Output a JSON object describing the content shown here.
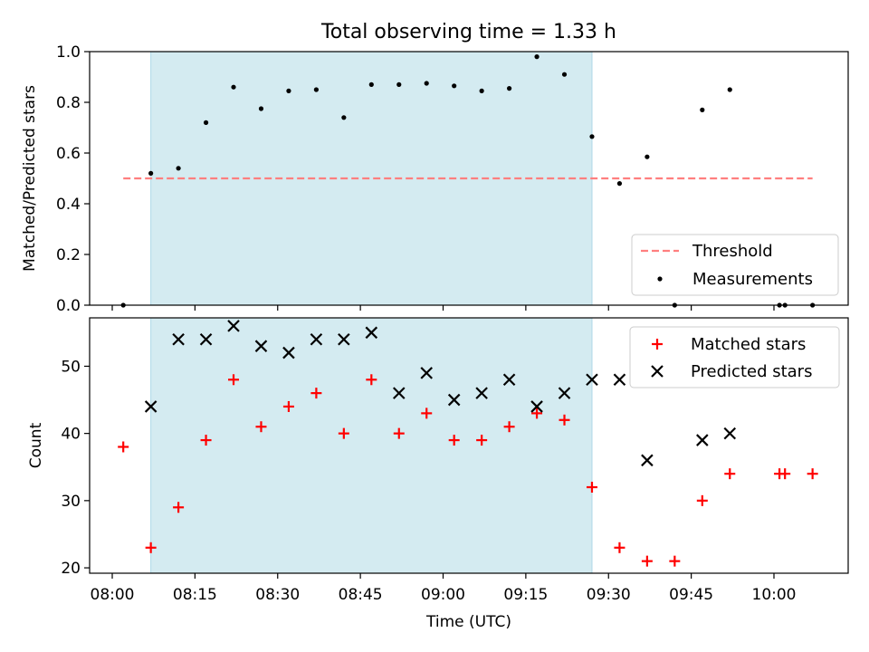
{
  "figure": {
    "title": "Total observing time = 1.33 h",
    "xlabel": "Time (UTC)"
  },
  "chart_data": [
    {
      "type": "scatter",
      "ylabel": "Matched/Predicted stars",
      "ylim": [
        0.0,
        1.0
      ],
      "yticks": [
        "0.0",
        "0.2",
        "0.4",
        "0.6",
        "0.8",
        "1.0"
      ],
      "xrange": [
        "08:00",
        "10:10"
      ],
      "shaded_span": [
        "08:07",
        "09:27"
      ],
      "shade_color": "#d4ebf1",
      "legend": "bottom-right",
      "series": [
        {
          "name": "Threshold",
          "kind": "dashed-line",
          "color": "#ff7f7f",
          "x": [
            "08:02",
            "10:07"
          ],
          "values": [
            0.5,
            0.5
          ]
        },
        {
          "name": "Measurements",
          "kind": "dots",
          "color": "#000000",
          "x": [
            "08:02",
            "08:07",
            "08:12",
            "08:17",
            "08:22",
            "08:27",
            "08:32",
            "08:37",
            "08:42",
            "08:47",
            "08:52",
            "08:57",
            "09:02",
            "09:07",
            "09:12",
            "09:17",
            "09:22",
            "09:27",
            "09:32",
            "09:37",
            "09:42",
            "09:47",
            "09:52",
            "10:01",
            "10:02",
            "10:07"
          ],
          "values": [
            0.0,
            0.52,
            0.54,
            0.72,
            0.86,
            0.775,
            0.845,
            0.85,
            0.74,
            0.87,
            0.87,
            0.875,
            0.865,
            0.845,
            0.855,
            0.98,
            0.91,
            0.665,
            0.48,
            0.585,
            0.0,
            0.77,
            0.85,
            0.0,
            0.0,
            0.0
          ]
        }
      ]
    },
    {
      "type": "scatter",
      "ylabel": "Count",
      "ylim": [
        19.2,
        57.2
      ],
      "yticks": [
        "20",
        "30",
        "40",
        "50"
      ],
      "xticks": [
        "08:00",
        "08:15",
        "08:30",
        "08:45",
        "09:00",
        "09:15",
        "09:30",
        "09:45",
        "10:00"
      ],
      "xrange": [
        "08:00",
        "10:10"
      ],
      "shaded_span": [
        "08:07",
        "09:27"
      ],
      "shade_color": "#d4ebf1",
      "legend": "top-right",
      "series": [
        {
          "name": "Matched stars",
          "marker": "plus",
          "color": "#ff0000",
          "x": [
            "08:02",
            "08:07",
            "08:12",
            "08:17",
            "08:22",
            "08:27",
            "08:32",
            "08:37",
            "08:42",
            "08:47",
            "08:52",
            "08:57",
            "09:02",
            "09:07",
            "09:12",
            "09:17",
            "09:22",
            "09:27",
            "09:32",
            "09:37",
            "09:42",
            "09:47",
            "09:52",
            "10:01",
            "10:02",
            "10:07"
          ],
          "values": [
            38,
            23,
            29,
            39,
            48,
            41,
            44,
            46,
            40,
            48,
            40,
            43,
            39,
            39,
            41,
            43,
            42,
            32,
            23,
            21,
            21,
            30,
            34,
            34,
            34,
            34
          ]
        },
        {
          "name": "Predicted stars",
          "marker": "x",
          "color": "#000000",
          "x": [
            "08:07",
            "08:12",
            "08:17",
            "08:22",
            "08:27",
            "08:32",
            "08:37",
            "08:42",
            "08:47",
            "08:52",
            "08:57",
            "09:02",
            "09:07",
            "09:12",
            "09:17",
            "09:22",
            "09:27",
            "09:32",
            "09:37",
            "09:47",
            "09:52"
          ],
          "values": [
            44,
            54,
            54,
            56,
            53,
            52,
            54,
            54,
            55,
            46,
            49,
            45,
            46,
            48,
            44,
            46,
            48,
            48,
            36,
            39,
            40
          ]
        }
      ]
    }
  ]
}
